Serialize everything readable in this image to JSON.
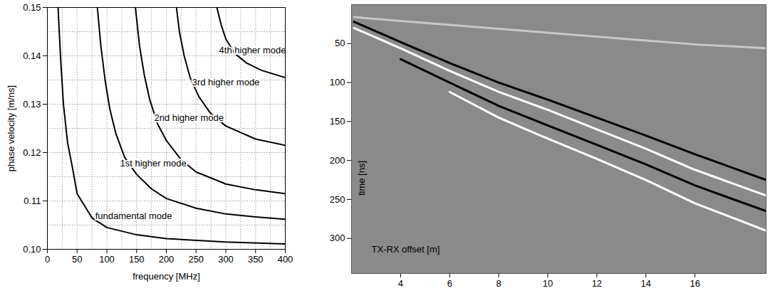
{
  "chart_data": [
    {
      "type": "line",
      "xlabel": "frequency [MHz]",
      "ylabel": "phase velocity [m/ns]",
      "xlim": [
        0,
        400
      ],
      "ylim": [
        0.1,
        0.15
      ],
      "xticks": [
        0,
        50,
        100,
        150,
        200,
        250,
        300,
        350,
        400
      ],
      "yticks": [
        {
          "value": 0.1,
          "label": "0.10"
        },
        0.11,
        0.12,
        0.13,
        0.14,
        0.15
      ],
      "grid": true,
      "series": [
        {
          "color": "#000000",
          "x": [
            18,
            22,
            27,
            34,
            42,
            50,
            75,
            100,
            150,
            200,
            300,
            400
          ],
          "values": [
            0.15,
            0.14,
            0.13,
            0.122,
            0.117,
            0.1115,
            0.1065,
            0.1045,
            0.103,
            0.1022,
            0.1015,
            0.1011
          ]
        },
        {
          "color": "#000000",
          "x": [
            84,
            90,
            97,
            105,
            115,
            130,
            150,
            175,
            200,
            250,
            300,
            350,
            400
          ],
          "values": [
            0.15,
            0.142,
            0.135,
            0.129,
            0.124,
            0.119,
            0.1155,
            0.1125,
            0.1105,
            0.1085,
            0.1073,
            0.1067,
            0.1062
          ]
        },
        {
          "color": "#000000",
          "x": [
            148,
            155,
            163,
            172,
            185,
            200,
            225,
            250,
            300,
            350,
            400
          ],
          "values": [
            0.15,
            0.142,
            0.136,
            0.131,
            0.126,
            0.1225,
            0.1185,
            0.116,
            0.1135,
            0.1123,
            0.1115
          ]
        },
        {
          "color": "#000000",
          "x": [
            217,
            222,
            230,
            240,
            255,
            275,
            300,
            350,
            400
          ],
          "values": [
            0.15,
            0.145,
            0.14,
            0.1355,
            0.1315,
            0.128,
            0.1255,
            0.1228,
            0.1215
          ]
        },
        {
          "color": "#000000",
          "x": [
            285,
            292,
            300,
            315,
            335,
            360,
            400
          ],
          "values": [
            0.15,
            0.1465,
            0.1435,
            0.1405,
            0.1385,
            0.137,
            0.1355
          ]
        }
      ],
      "annotations": [
        {
          "text": "fundamental mode",
          "x": 145,
          "y": 0.1068
        },
        {
          "text": "1st higher mode",
          "x": 178,
          "y": 0.1178
        },
        {
          "text": "2nd higher mode",
          "x": 238,
          "y": 0.1272
        },
        {
          "text": "3rd higher mode",
          "x": 300,
          "y": 0.1345
        },
        {
          "text": "4th higher mode",
          "x": 345,
          "y": 0.1412
        }
      ]
    },
    {
      "type": "line",
      "xlabel": "TX-RX offset [m]",
      "ylabel": "time [ns]",
      "xlim": [
        2,
        18.9
      ],
      "ylim": [
        0,
        345
      ],
      "xticks": [
        4,
        6,
        8,
        10,
        12,
        14,
        16
      ],
      "yticks": [
        50,
        100,
        150,
        200,
        250,
        300
      ],
      "color": "#8a8a8a",
      "x": [
        2.1,
        4,
        6,
        8,
        10,
        12,
        14,
        16,
        18.9
      ],
      "series": [
        {
          "color": "#c8c8c8",
          "values": [
            16,
            21,
            26,
            31,
            36,
            41,
            46,
            51,
            56
          ]
        },
        {
          "color": "#000000",
          "values": [
            22,
            48,
            75,
            100,
            122,
            145,
            168,
            192,
            225
          ]
        },
        {
          "color": "#ffffff",
          "values": [
            30,
            56,
            85,
            112,
            135,
            160,
            185,
            212,
            245
          ]
        },
        {
          "color": "#000000",
          "values": [
            null,
            70,
            100,
            130,
            155,
            180,
            205,
            232,
            265
          ]
        },
        {
          "color": "#ffffff",
          "values": [
            null,
            null,
            112,
            145,
            172,
            198,
            225,
            255,
            290
          ]
        }
      ]
    }
  ]
}
